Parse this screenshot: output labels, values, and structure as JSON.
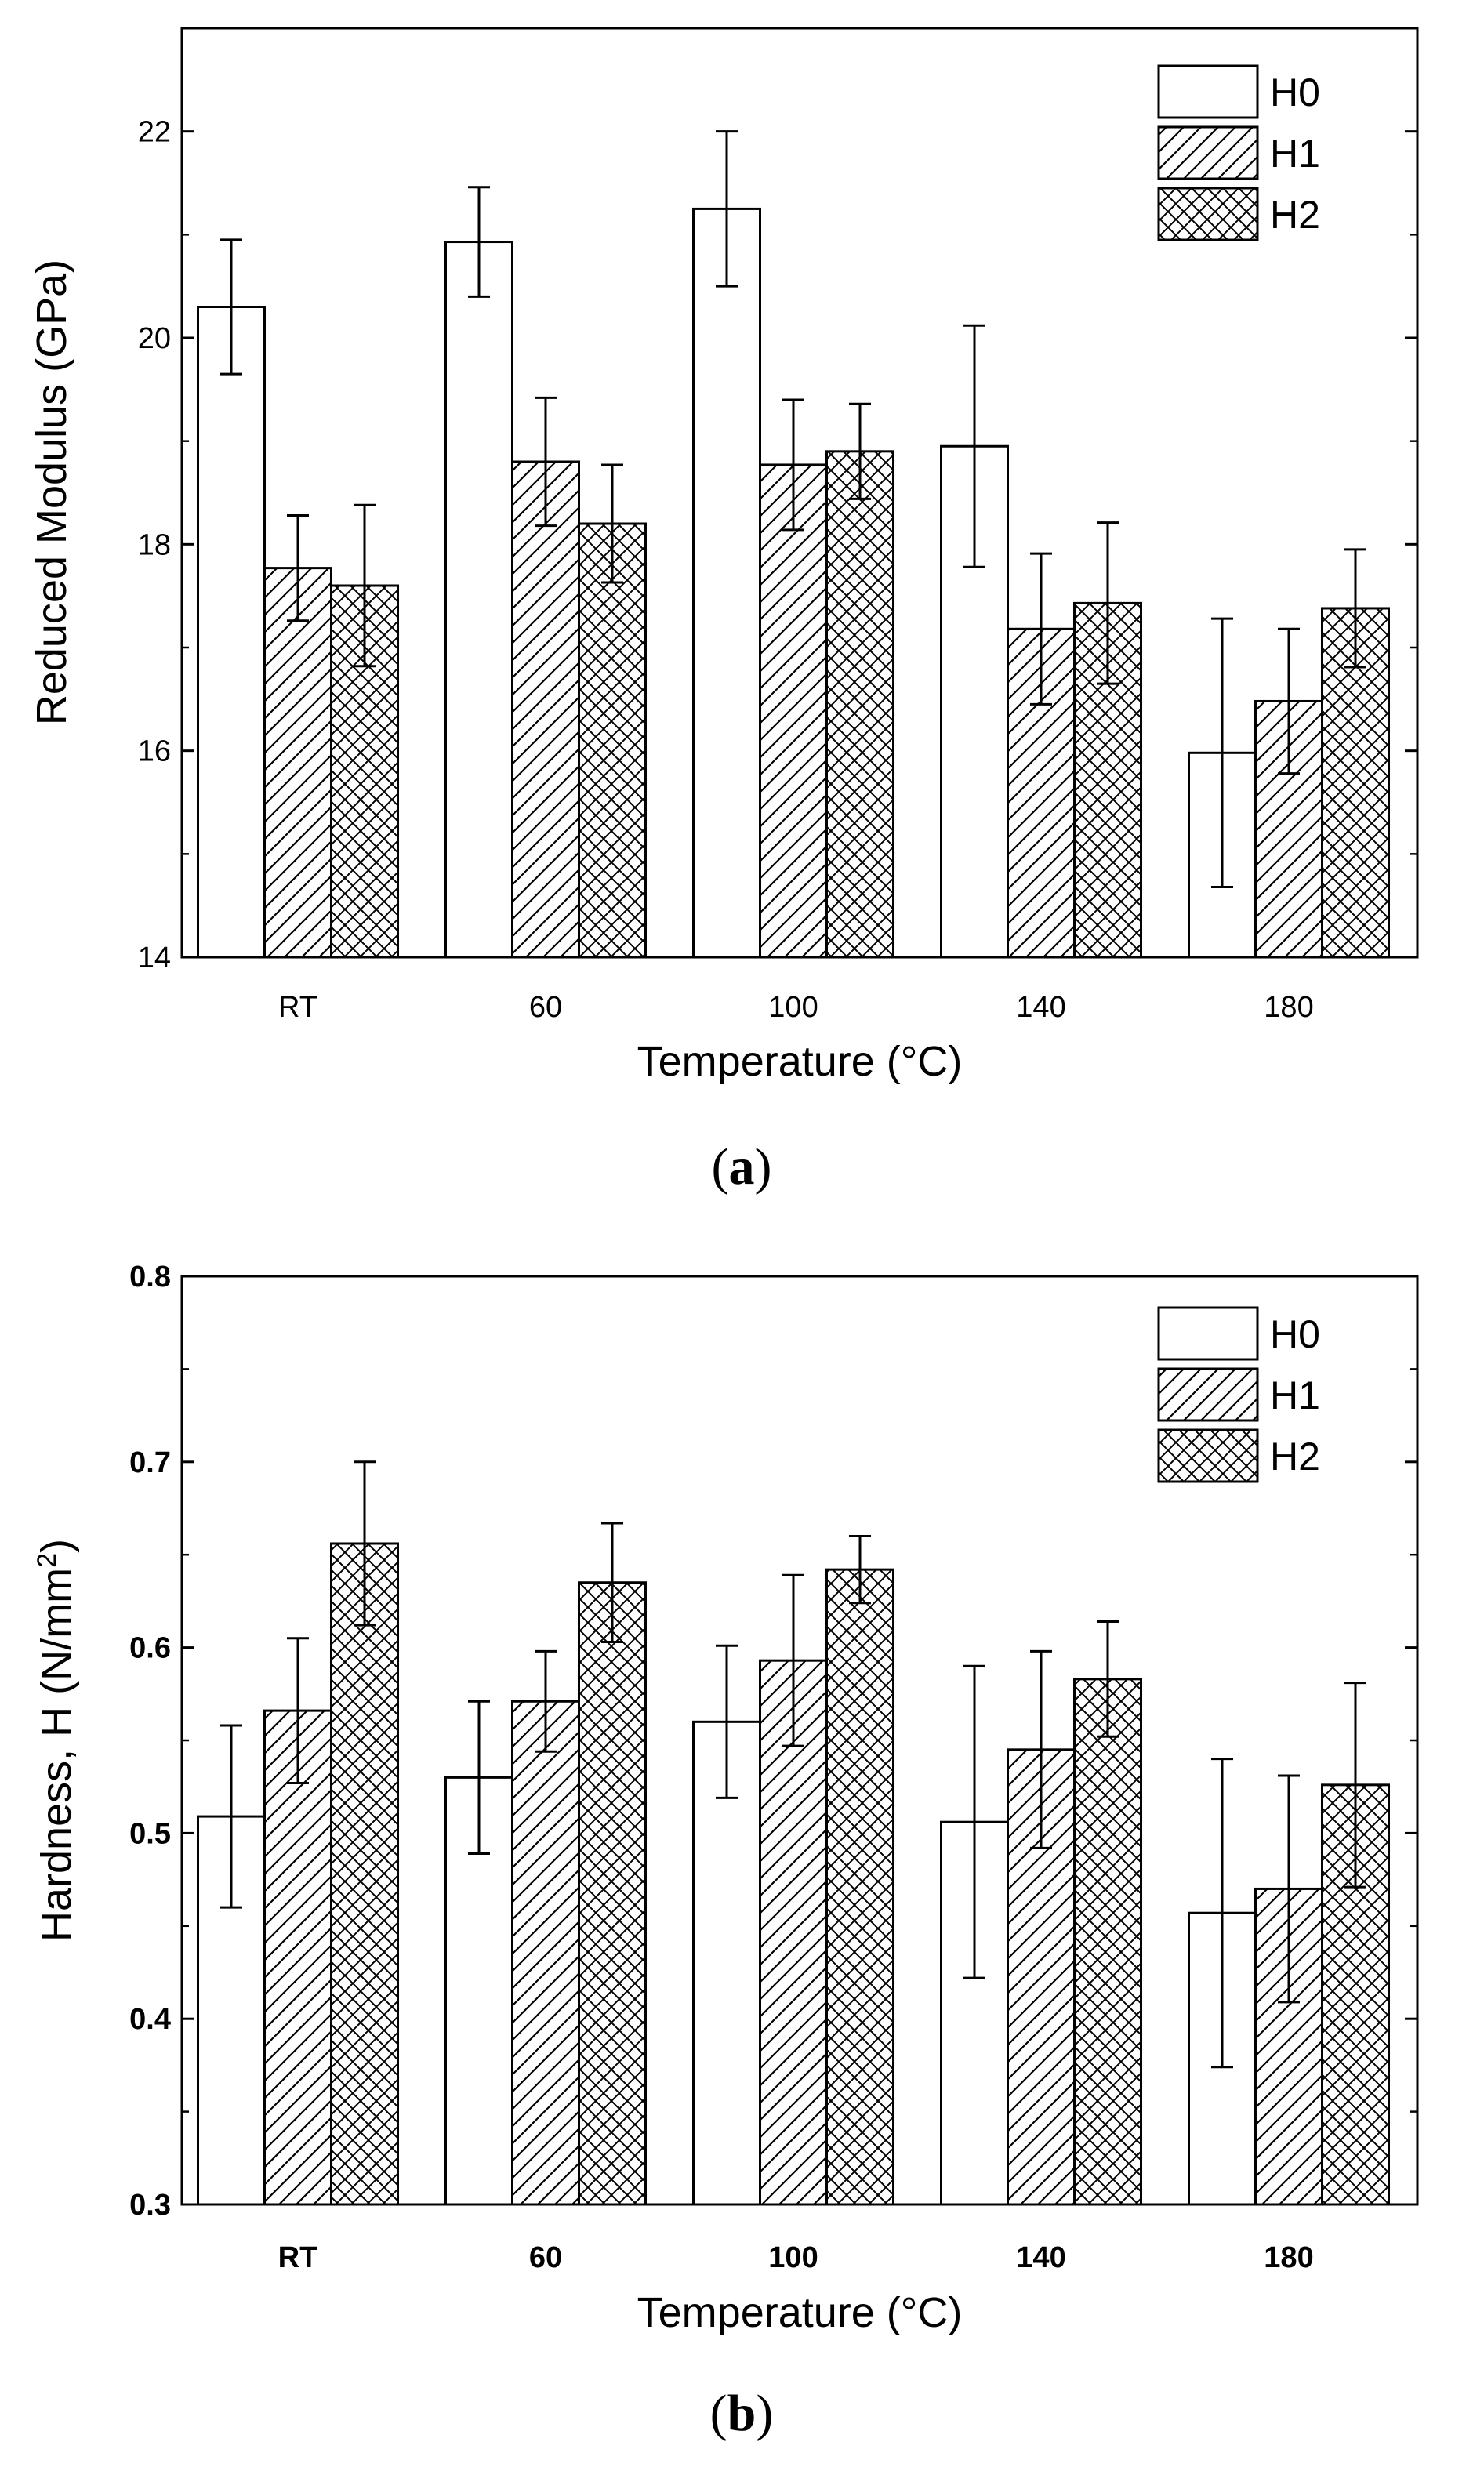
{
  "legend_labels": [
    "H0",
    "H1",
    "H2"
  ],
  "chart_data": [
    {
      "type": "bar",
      "panel_label": "a",
      "categories": [
        "RT",
        "60",
        "100",
        "140",
        "180"
      ],
      "xlabel": "Temperature (°C)",
      "ylabel": "Reduced Modulus (GPa)",
      "ylim": [
        14,
        23
      ],
      "yticks": [
        "14",
        "16",
        "18",
        "20",
        "22"
      ],
      "tick_bold": false,
      "series": [
        {
          "name": "H0",
          "pattern": "none",
          "values": [
            20.3,
            20.93,
            21.25,
            18.95,
            15.98
          ],
          "errors": [
            0.65,
            0.53,
            0.75,
            1.17,
            1.3
          ]
        },
        {
          "name": "H1",
          "pattern": "hatch",
          "values": [
            17.77,
            18.8,
            18.77,
            17.18,
            16.48
          ],
          "errors": [
            0.51,
            0.62,
            0.63,
            0.73,
            0.7
          ]
        },
        {
          "name": "H2",
          "pattern": "cross",
          "values": [
            17.6,
            18.2,
            18.9,
            17.43,
            17.38
          ],
          "errors": [
            0.78,
            0.57,
            0.46,
            0.78,
            0.57
          ]
        }
      ],
      "legend_position": "top-right",
      "grid": false
    },
    {
      "type": "bar",
      "panel_label": "b",
      "categories": [
        "RT",
        "60",
        "100",
        "140",
        "180"
      ],
      "xlabel": "Temperature (°C)",
      "ylabel": "Hardness, H (N/mm",
      "ylabel_sup": "2",
      "ylabel_close": ")",
      "ylim": [
        0.3,
        0.8
      ],
      "yticks": [
        "0.3",
        "0.4",
        "0.5",
        "0.6",
        "0.7",
        "0.8"
      ],
      "tick_bold": true,
      "series": [
        {
          "name": "H0",
          "pattern": "none",
          "values": [
            0.509,
            0.53,
            0.56,
            0.506,
            0.457
          ],
          "errors": [
            0.049,
            0.041,
            0.041,
            0.084,
            0.083
          ]
        },
        {
          "name": "H1",
          "pattern": "hatch",
          "values": [
            0.566,
            0.571,
            0.593,
            0.545,
            0.47
          ],
          "errors": [
            0.039,
            0.027,
            0.046,
            0.053,
            0.061
          ]
        },
        {
          "name": "H2",
          "pattern": "cross",
          "values": [
            0.656,
            0.635,
            0.642,
            0.583,
            0.526
          ],
          "errors": [
            0.044,
            0.032,
            0.018,
            0.031,
            0.055
          ]
        }
      ],
      "legend_position": "top-right",
      "grid": false
    }
  ]
}
